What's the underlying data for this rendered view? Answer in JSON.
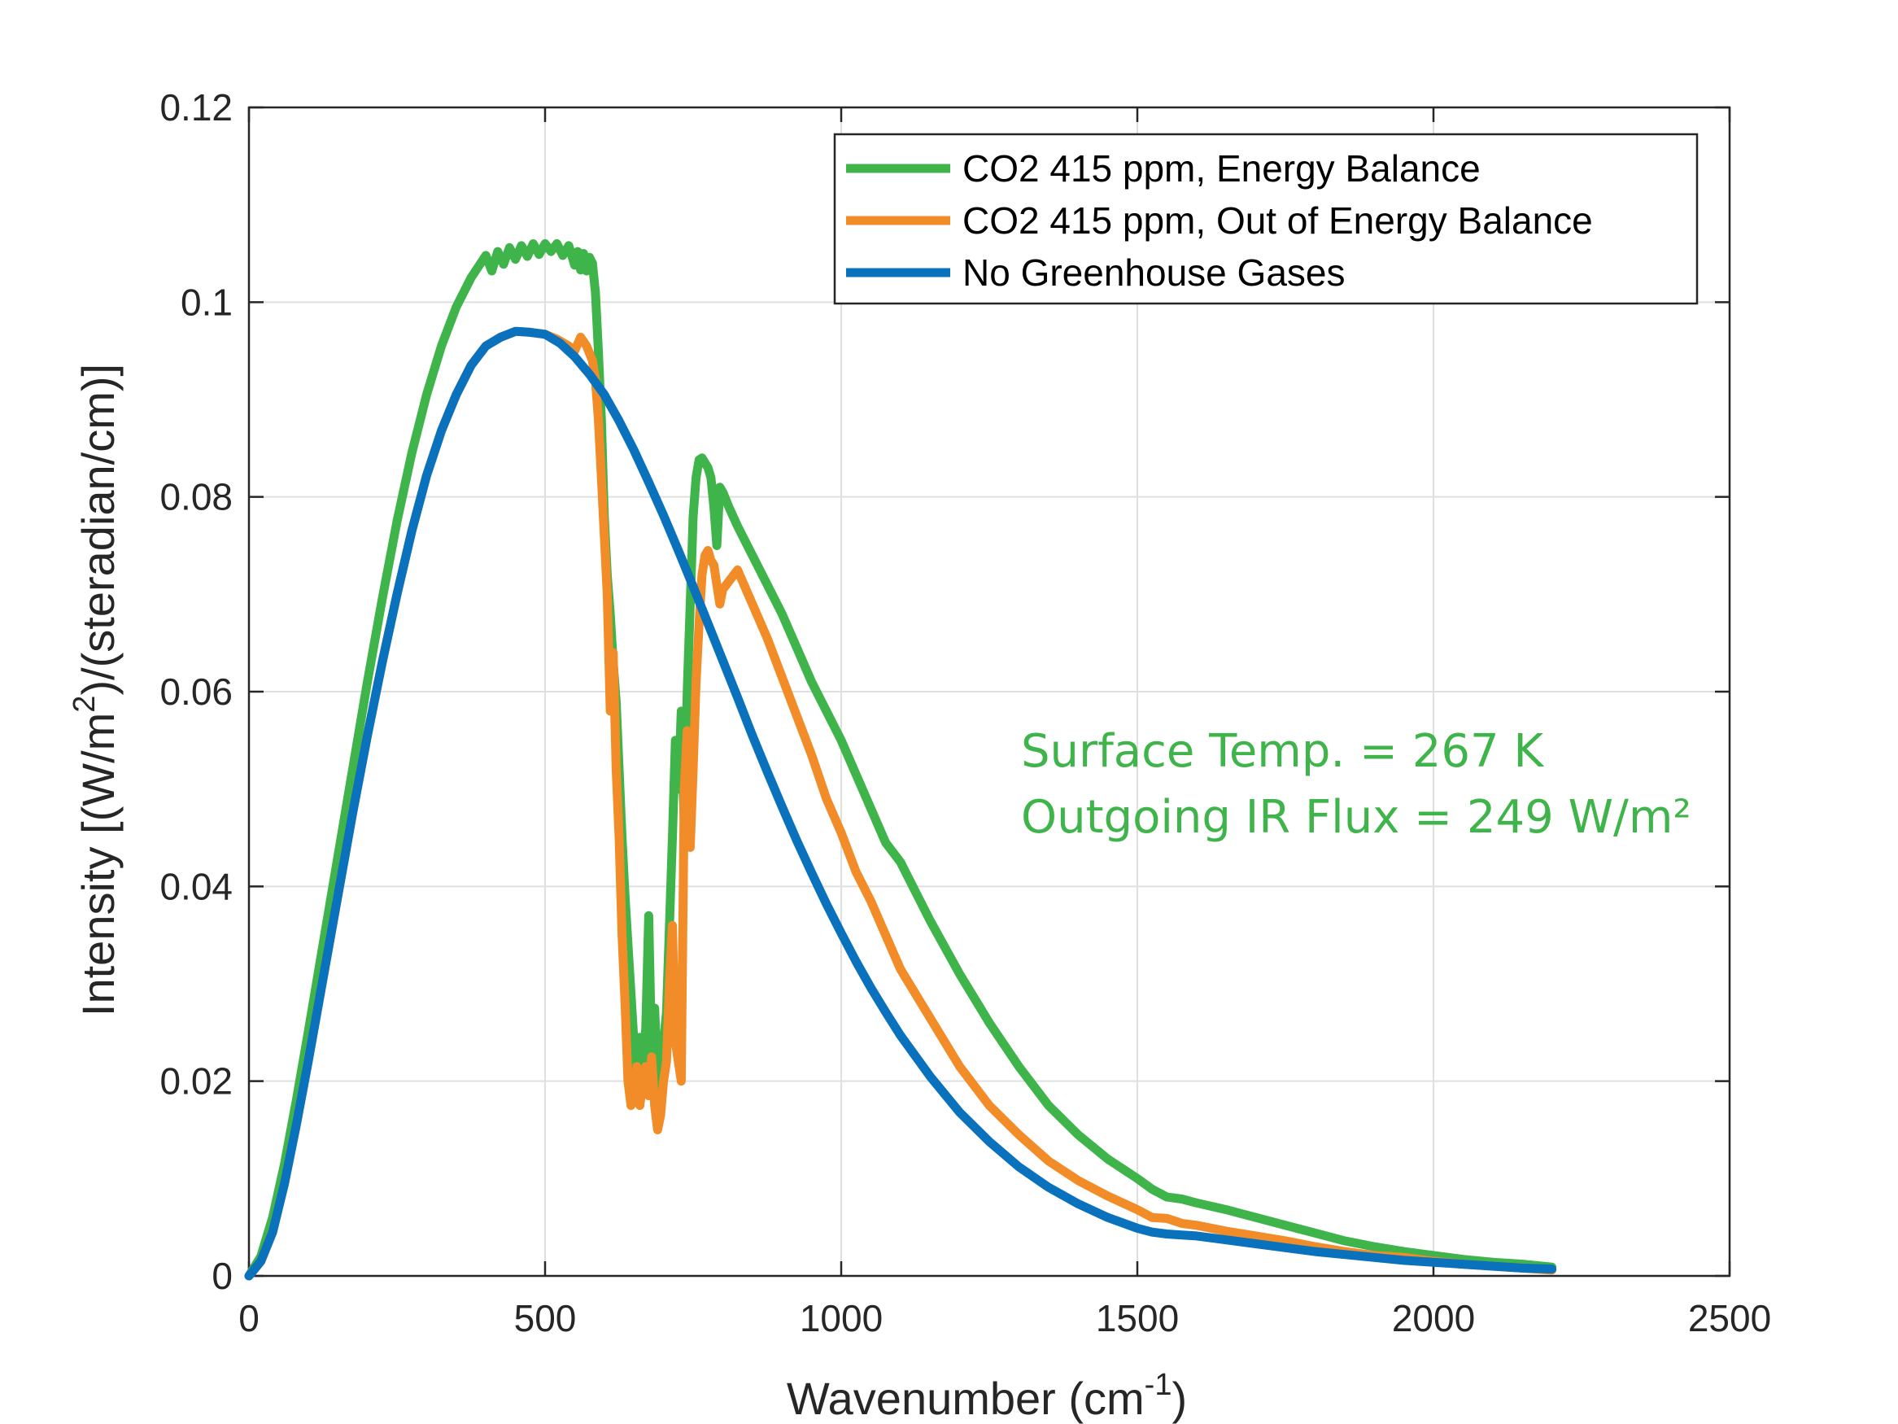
{
  "chart_data": {
    "type": "line",
    "title": "",
    "xlabel": "Wavenumber (cm",
    "xlabel_sup": "-1",
    "xlabel_end": ")",
    "ylabel": "Intensity [(W/m",
    "ylabel_sup": "2",
    "ylabel_end": ")/(steradian/cm)]",
    "xlim": [
      0,
      2500
    ],
    "ylim": [
      0,
      0.12
    ],
    "xticks": [
      0,
      500,
      1000,
      1500,
      2000,
      2500
    ],
    "xtick_labels": [
      "0",
      "500",
      "1000",
      "1500",
      "2000",
      "2500"
    ],
    "yticks": [
      0,
      0.02,
      0.04,
      0.06,
      0.08,
      0.1,
      0.12
    ],
    "ytick_labels": [
      "0",
      "0.02",
      "0.04",
      "0.06",
      "0.08",
      "0.1",
      "0.12"
    ],
    "grid": true,
    "legend_position": "top-right",
    "series": [
      {
        "name": "CO2 415 ppm, Energy Balance",
        "color": "#3fb44a",
        "x": [
          0,
          20,
          40,
          60,
          80,
          100,
          125,
          150,
          175,
          200,
          225,
          250,
          275,
          300,
          325,
          350,
          375,
          400,
          410,
          420,
          430,
          440,
          450,
          460,
          470,
          480,
          490,
          500,
          510,
          520,
          530,
          540,
          550,
          555,
          560,
          565,
          570,
          575,
          580,
          585,
          590,
          595,
          600,
          605,
          610,
          615,
          620,
          625,
          630,
          635,
          640,
          645,
          650,
          655,
          660,
          665,
          670,
          675,
          680,
          685,
          690,
          695,
          700,
          705,
          710,
          715,
          720,
          725,
          730,
          735,
          740,
          745,
          750,
          755,
          760,
          765,
          770,
          775,
          780,
          785,
          790,
          795,
          800,
          810,
          825,
          850,
          875,
          900,
          925,
          950,
          975,
          1000,
          1025,
          1050,
          1075,
          1100,
          1125,
          1150,
          1200,
          1250,
          1300,
          1350,
          1400,
          1450,
          1500,
          1525,
          1550,
          1575,
          1600,
          1650,
          1700,
          1750,
          1800,
          1850,
          1900,
          1950,
          2000,
          2050,
          2100,
          2150,
          2200
        ],
        "y": [
          0,
          0.002,
          0.006,
          0.0115,
          0.018,
          0.025,
          0.034,
          0.043,
          0.052,
          0.061,
          0.0695,
          0.0775,
          0.0845,
          0.0905,
          0.0955,
          0.0995,
          0.1025,
          0.1048,
          0.1032,
          0.1052,
          0.1039,
          0.1056,
          0.1044,
          0.1058,
          0.1047,
          0.106,
          0.1049,
          0.106,
          0.1052,
          0.106,
          0.1048,
          0.1058,
          0.1038,
          0.1052,
          0.1033,
          0.105,
          0.1032,
          0.1046,
          0.104,
          0.101,
          0.095,
          0.088,
          0.078,
          0.072,
          0.068,
          0.063,
          0.059,
          0.052,
          0.045,
          0.039,
          0.034,
          0.029,
          0.024,
          0.02,
          0.0245,
          0.021,
          0.0255,
          0.037,
          0.0225,
          0.0275,
          0.02,
          0.018,
          0.024,
          0.027,
          0.036,
          0.045,
          0.055,
          0.05,
          0.058,
          0.046,
          0.06,
          0.069,
          0.078,
          0.082,
          0.0838,
          0.084,
          0.0835,
          0.083,
          0.082,
          0.079,
          0.075,
          0.081,
          0.0805,
          0.079,
          0.077,
          0.074,
          0.071,
          0.068,
          0.0645,
          0.061,
          0.058,
          0.055,
          0.0515,
          0.048,
          0.0445,
          0.0425,
          0.0395,
          0.0365,
          0.031,
          0.026,
          0.0215,
          0.0175,
          0.0145,
          0.012,
          0.01,
          0.0089,
          0.0081,
          0.0079,
          0.0075,
          0.0068,
          0.006,
          0.0052,
          0.0044,
          0.0036,
          0.003,
          0.0025,
          0.0021,
          0.0017,
          0.0014,
          0.0012,
          0.0009
        ]
      },
      {
        "name": "CO2 415 ppm, Out of Energy Balance",
        "color": "#f28c28",
        "x": [
          0,
          20,
          40,
          60,
          80,
          100,
          125,
          150,
          175,
          200,
          225,
          250,
          275,
          300,
          325,
          350,
          375,
          400,
          425,
          450,
          475,
          500,
          520,
          540,
          550,
          560,
          570,
          580,
          585,
          590,
          595,
          600,
          605,
          610,
          615,
          620,
          625,
          630,
          635,
          640,
          645,
          650,
          655,
          660,
          665,
          670,
          675,
          680,
          685,
          690,
          695,
          700,
          705,
          710,
          715,
          720,
          725,
          730,
          735,
          740,
          745,
          750,
          755,
          760,
          765,
          770,
          775,
          780,
          785,
          790,
          795,
          800,
          825,
          850,
          875,
          900,
          925,
          950,
          975,
          1000,
          1025,
          1050,
          1075,
          1100,
          1150,
          1200,
          1250,
          1300,
          1350,
          1400,
          1450,
          1500,
          1525,
          1550,
          1575,
          1600,
          1650,
          1700,
          1750,
          1800,
          1850,
          1900,
          1950,
          2000,
          2050,
          2100,
          2150,
          2200
        ],
        "y": [
          0,
          0.0015,
          0.0045,
          0.0095,
          0.0155,
          0.022,
          0.0305,
          0.039,
          0.0475,
          0.0555,
          0.063,
          0.07,
          0.0765,
          0.0822,
          0.0868,
          0.0905,
          0.0935,
          0.0955,
          0.0964,
          0.097,
          0.0969,
          0.0967,
          0.0962,
          0.0955,
          0.095,
          0.0964,
          0.0955,
          0.094,
          0.092,
          0.088,
          0.082,
          0.076,
          0.07,
          0.058,
          0.064,
          0.052,
          0.045,
          0.035,
          0.028,
          0.02,
          0.0175,
          0.018,
          0.0215,
          0.0175,
          0.02,
          0.0215,
          0.0185,
          0.0225,
          0.0175,
          0.015,
          0.0165,
          0.02,
          0.022,
          0.03,
          0.036,
          0.024,
          0.022,
          0.02,
          0.05,
          0.056,
          0.044,
          0.052,
          0.061,
          0.067,
          0.072,
          0.074,
          0.0745,
          0.0735,
          0.073,
          0.071,
          0.069,
          0.0705,
          0.0725,
          0.069,
          0.0655,
          0.0615,
          0.0575,
          0.0535,
          0.049,
          0.0455,
          0.0415,
          0.0385,
          0.035,
          0.0315,
          0.0265,
          0.0215,
          0.0175,
          0.0145,
          0.0118,
          0.0098,
          0.0082,
          0.0068,
          0.006,
          0.0059,
          0.0054,
          0.0052,
          0.0046,
          0.0041,
          0.0036,
          0.003,
          0.0025,
          0.0021,
          0.0019,
          0.0015,
          0.0012,
          0.001,
          0.0008,
          0.0006
        ]
      },
      {
        "name": "No Greenhouse Gases",
        "color": "#0a72bd",
        "x": [
          0,
          20,
          40,
          60,
          80,
          100,
          125,
          150,
          175,
          200,
          225,
          250,
          275,
          300,
          325,
          350,
          375,
          400,
          425,
          450,
          475,
          500,
          525,
          550,
          575,
          600,
          625,
          650,
          675,
          700,
          725,
          750,
          775,
          800,
          825,
          850,
          875,
          900,
          925,
          950,
          975,
          1000,
          1025,
          1050,
          1075,
          1100,
          1150,
          1200,
          1250,
          1300,
          1350,
          1400,
          1450,
          1500,
          1525,
          1550,
          1575,
          1600,
          1650,
          1700,
          1750,
          1800,
          1850,
          1900,
          1950,
          2000,
          2050,
          2100,
          2150,
          2200
        ],
        "y": [
          0,
          0.0015,
          0.0045,
          0.0095,
          0.0155,
          0.022,
          0.0305,
          0.039,
          0.0475,
          0.0555,
          0.063,
          0.07,
          0.0765,
          0.0822,
          0.0868,
          0.0905,
          0.0935,
          0.0955,
          0.0964,
          0.097,
          0.0969,
          0.0967,
          0.0958,
          0.0944,
          0.0926,
          0.0905,
          0.0878,
          0.0848,
          0.0815,
          0.0781,
          0.0745,
          0.0708,
          0.067,
          0.0632,
          0.0594,
          0.0555,
          0.0518,
          0.0482,
          0.0447,
          0.0414,
          0.0382,
          0.0352,
          0.0323,
          0.0296,
          0.0271,
          0.0247,
          0.0205,
          0.0168,
          0.0138,
          0.0112,
          0.0091,
          0.0074,
          0.006,
          0.0049,
          0.0045,
          0.0043,
          0.0042,
          0.0041,
          0.0037,
          0.0033,
          0.0029,
          0.0025,
          0.0022,
          0.0019,
          0.0016,
          0.0014,
          0.0012,
          0.001,
          0.0008,
          0.0007
        ]
      }
    ],
    "annotations": [
      "Surface Temp. = 267 K",
      "Outgoing IR Flux = 249 W/m²"
    ],
    "annotation_color": "#3fb44a"
  }
}
